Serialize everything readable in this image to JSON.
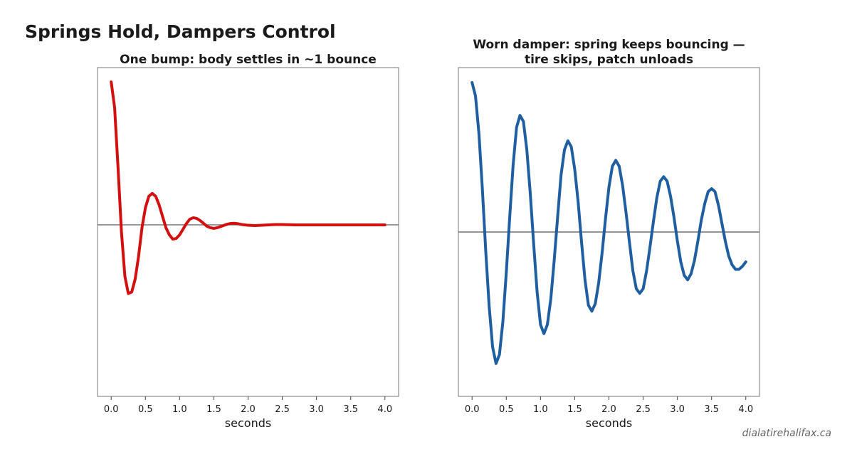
{
  "figure": {
    "title": "Springs Hold, Dampers Control",
    "watermark": "dialatirehalifax.ca"
  },
  "chart_data": [
    {
      "type": "line",
      "title": "One bump: body settles in ~1 bounce",
      "xlabel": "seconds",
      "ylabel": "",
      "xlim": [
        -0.2,
        4.2
      ],
      "ylim": [
        -1.2,
        1.1
      ],
      "xticks": [
        0.0,
        0.5,
        1.0,
        1.5,
        2.0,
        2.5,
        3.0,
        3.5,
        4.0
      ],
      "xtick_labels": [
        "0.0",
        "0.5",
        "1.0",
        "1.5",
        "2.0",
        "2.5",
        "3.0",
        "3.5",
        "4.0"
      ],
      "yticks_visible": false,
      "grid": false,
      "baseline_y": 0,
      "series": [
        {
          "color": "#d40f0f",
          "x": [
            0.0,
            0.05,
            0.1,
            0.15,
            0.2,
            0.25,
            0.3,
            0.35,
            0.4,
            0.45,
            0.5,
            0.55,
            0.6,
            0.65,
            0.7,
            0.75,
            0.8,
            0.85,
            0.9,
            0.95,
            1.0,
            1.05,
            1.1,
            1.15,
            1.2,
            1.25,
            1.3,
            1.35,
            1.4,
            1.45,
            1.5,
            1.55,
            1.6,
            1.65,
            1.7,
            1.75,
            1.8,
            1.85,
            1.9,
            1.95,
            2.0,
            2.1,
            2.2,
            2.3,
            2.4,
            2.5,
            2.6,
            2.7,
            2.8,
            3.0,
            3.2,
            3.4,
            3.6,
            3.8,
            4.0
          ],
          "y": [
            1.0,
            0.82,
            0.4,
            -0.05,
            -0.36,
            -0.48,
            -0.47,
            -0.38,
            -0.22,
            -0.02,
            0.12,
            0.2,
            0.22,
            0.2,
            0.14,
            0.06,
            -0.02,
            -0.07,
            -0.1,
            -0.095,
            -0.07,
            -0.03,
            0.01,
            0.04,
            0.05,
            0.045,
            0.03,
            0.01,
            -0.01,
            -0.02,
            -0.025,
            -0.02,
            -0.012,
            -0.003,
            0.005,
            0.01,
            0.011,
            0.008,
            0.003,
            0.0,
            -0.003,
            -0.005,
            -0.003,
            0.0,
            0.002,
            0.002,
            0.001,
            0.0,
            0.0,
            0.0,
            0.0,
            0.0,
            0.0,
            0.0,
            0.0
          ]
        }
      ]
    },
    {
      "type": "line",
      "title": "Worn damper: spring keeps bouncing —\ntire skips, patch unloads",
      "xlabel": "seconds",
      "ylabel": "",
      "xlim": [
        -0.2,
        4.2
      ],
      "ylim": [
        -1.1,
        1.1
      ],
      "xticks": [
        0.0,
        0.5,
        1.0,
        1.5,
        2.0,
        2.5,
        3.0,
        3.5,
        4.0
      ],
      "xtick_labels": [
        "0.0",
        "0.5",
        "1.0",
        "1.5",
        "2.0",
        "2.5",
        "3.0",
        "3.5",
        "4.0"
      ],
      "yticks_visible": false,
      "grid": false,
      "baseline_y": 0,
      "series": [
        {
          "color": "#1f5fa1",
          "x": [
            0.0,
            0.05,
            0.1,
            0.15,
            0.2,
            0.25,
            0.3,
            0.35,
            0.4,
            0.45,
            0.5,
            0.55,
            0.6,
            0.65,
            0.7,
            0.75,
            0.8,
            0.85,
            0.9,
            0.95,
            1.0,
            1.05,
            1.1,
            1.15,
            1.2,
            1.25,
            1.3,
            1.35,
            1.4,
            1.45,
            1.5,
            1.55,
            1.6,
            1.65,
            1.7,
            1.75,
            1.8,
            1.85,
            1.9,
            1.95,
            2.0,
            2.05,
            2.1,
            2.15,
            2.2,
            2.25,
            2.3,
            2.35,
            2.4,
            2.45,
            2.5,
            2.55,
            2.6,
            2.65,
            2.7,
            2.75,
            2.8,
            2.85,
            2.9,
            2.95,
            3.0,
            3.05,
            3.1,
            3.15,
            3.2,
            3.25,
            3.3,
            3.35,
            3.4,
            3.45,
            3.5,
            3.55,
            3.6,
            3.65,
            3.7,
            3.75,
            3.8,
            3.85,
            3.9,
            3.95,
            4.0
          ],
          "y": [
            1.0,
            0.91,
            0.66,
            0.29,
            -0.13,
            -0.5,
            -0.77,
            -0.88,
            -0.82,
            -0.6,
            -0.27,
            0.1,
            0.45,
            0.7,
            0.78,
            0.74,
            0.55,
            0.26,
            -0.08,
            -0.4,
            -0.62,
            -0.68,
            -0.62,
            -0.45,
            -0.19,
            0.1,
            0.38,
            0.55,
            0.61,
            0.57,
            0.42,
            0.2,
            -0.07,
            -0.32,
            -0.49,
            -0.53,
            -0.48,
            -0.34,
            -0.14,
            0.09,
            0.3,
            0.44,
            0.48,
            0.44,
            0.31,
            0.13,
            -0.07,
            -0.26,
            -0.38,
            -0.41,
            -0.38,
            -0.26,
            -0.1,
            0.07,
            0.23,
            0.34,
            0.37,
            0.34,
            0.24,
            0.1,
            -0.06,
            -0.2,
            -0.29,
            -0.32,
            -0.28,
            -0.19,
            -0.06,
            0.08,
            0.19,
            0.27,
            0.29,
            0.27,
            0.18,
            0.06,
            -0.06,
            -0.16,
            -0.22,
            -0.25,
            -0.25,
            -0.23,
            -0.2
          ]
        }
      ]
    }
  ]
}
